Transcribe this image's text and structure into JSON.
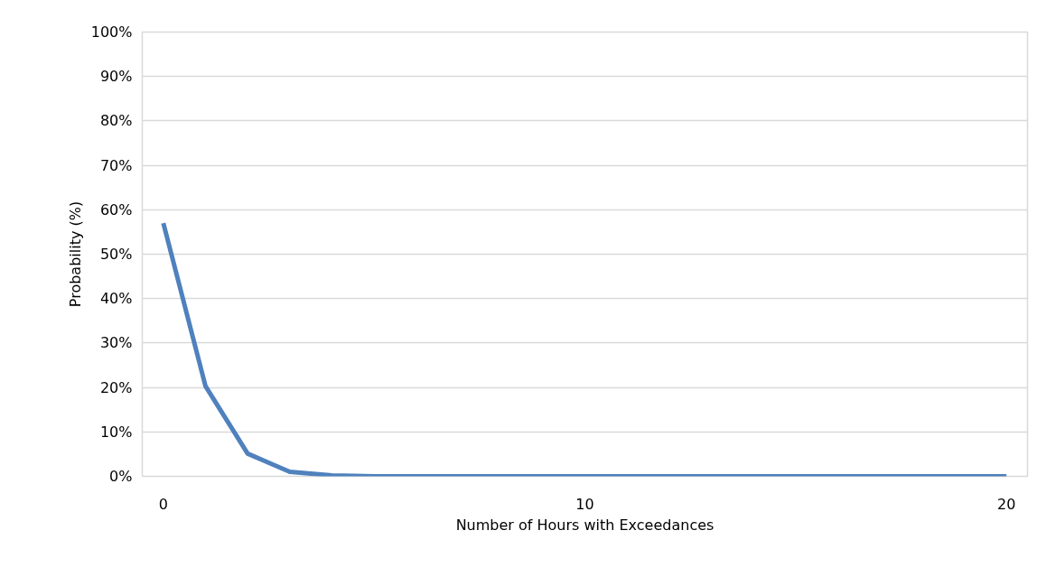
{
  "chart_data": {
    "type": "line",
    "xlabel": "Number of Hours with Exceedances",
    "ylabel": "Probability (%)",
    "x": [
      0,
      1,
      2,
      3,
      4,
      5,
      6,
      7,
      8,
      9,
      10,
      11,
      12,
      13,
      14,
      15,
      16,
      17,
      18,
      19,
      20
    ],
    "series": [
      {
        "color": "#4f81bd",
        "values": [
          57,
          20.3,
          5.1,
          1,
          0.2,
          0,
          0,
          0,
          0,
          0,
          0,
          0,
          0,
          0,
          0,
          0,
          0,
          0,
          0,
          0,
          0
        ]
      }
    ],
    "xlim": [
      -0.5,
      20.5
    ],
    "xticks": [
      0,
      10,
      20
    ],
    "ylim": [
      0,
      100
    ],
    "yticks": [
      {
        "value": 0,
        "label": "0%"
      },
      {
        "value": 10,
        "label": "10%"
      },
      {
        "value": 20,
        "label": "20%"
      },
      {
        "value": 30,
        "label": "30%"
      },
      {
        "value": 40,
        "label": "40%"
      },
      {
        "value": 50,
        "label": "50%"
      },
      {
        "value": 60,
        "label": "60%"
      },
      {
        "value": 70,
        "label": "70%"
      },
      {
        "value": 80,
        "label": "80%"
      },
      {
        "value": 90,
        "label": "90%"
      },
      {
        "value": 100,
        "label": "100%"
      }
    ],
    "grid": "y",
    "marker": "none",
    "line_style": "solid"
  }
}
